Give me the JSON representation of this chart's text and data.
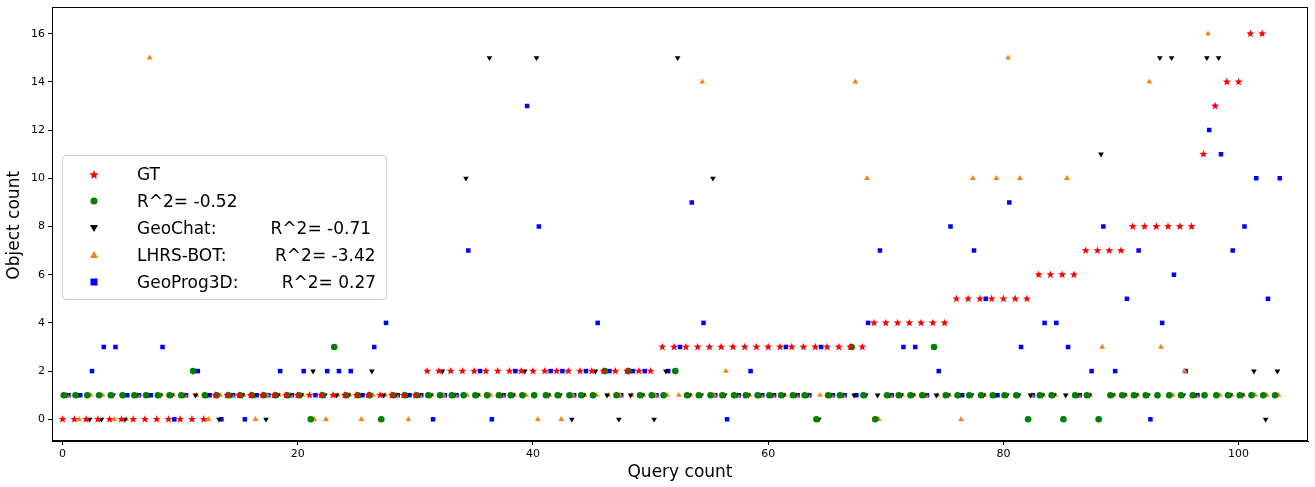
{
  "chart_data": {
    "type": "scatter",
    "xlabel": "Query count",
    "ylabel": "Object count",
    "xlim": [
      -0.9,
      105.9
    ],
    "ylim": [
      -0.9,
      17
    ],
    "xticks": [
      0,
      20,
      40,
      60,
      80,
      100
    ],
    "yticks": [
      0,
      2,
      4,
      6,
      8,
      10,
      12,
      14,
      16
    ],
    "grid": false,
    "legend": "left",
    "series": [
      {
        "name": "GT",
        "color": "#ff0000",
        "marker": "star",
        "x": [
          0,
          1,
          2,
          3,
          4,
          5,
          6,
          7,
          8,
          9,
          10,
          11,
          12,
          13,
          14,
          15,
          16,
          17,
          18,
          19,
          20,
          21,
          22,
          23,
          24,
          25,
          26,
          27,
          28,
          29,
          30,
          31,
          32,
          33,
          34,
          35,
          36,
          37,
          38,
          39,
          40,
          41,
          42,
          43,
          44,
          45,
          46,
          47,
          48,
          49,
          50,
          51,
          52,
          53,
          54,
          55,
          56,
          57,
          58,
          59,
          60,
          61,
          62,
          63,
          64,
          65,
          66,
          67,
          68,
          69,
          70,
          71,
          72,
          73,
          74,
          75,
          76,
          77,
          78,
          79,
          80,
          81,
          82,
          83,
          84,
          85,
          86,
          87,
          88,
          89,
          90,
          91,
          92,
          93,
          94,
          95,
          96,
          97,
          98,
          99,
          100,
          101,
          102
        ],
        "values": [
          0,
          0,
          0,
          0,
          0,
          0,
          0,
          0,
          0,
          0,
          0,
          0,
          0,
          1,
          1,
          1,
          1,
          1,
          1,
          1,
          1,
          1,
          1,
          1,
          1,
          1,
          1,
          1,
          1,
          1,
          1,
          2,
          2,
          2,
          2,
          2,
          2,
          2,
          2,
          2,
          2,
          2,
          2,
          2,
          2,
          2,
          2,
          2,
          2,
          2,
          2,
          3,
          3,
          3,
          3,
          3,
          3,
          3,
          3,
          3,
          3,
          3,
          3,
          3,
          3,
          3,
          3,
          3,
          3,
          4,
          4,
          4,
          4,
          4,
          4,
          4,
          5,
          5,
          5,
          5,
          5,
          5,
          5,
          6,
          6,
          6,
          6,
          7,
          7,
          7,
          7,
          8,
          8,
          8,
          8,
          8,
          8,
          11,
          13,
          14,
          14,
          16,
          16
        ]
      },
      {
        "name": "R^2= -0.52",
        "color": "#008000",
        "marker": "circle",
        "x": [
          0.1,
          1.1,
          2.1,
          3.1,
          4.1,
          5.1,
          6.1,
          7.1,
          8.1,
          9.1,
          10.1,
          11.1,
          12.1,
          13.1,
          14.1,
          15.1,
          16.1,
          17.1,
          18.1,
          19.1,
          20.1,
          21.1,
          22.1,
          23.1,
          24.1,
          25.1,
          26.1,
          27.1,
          28.1,
          29.1,
          30.1,
          31.1,
          32.1,
          33.1,
          34.1,
          35.1,
          36.1,
          37.1,
          38.1,
          39.1,
          40.1,
          41.1,
          42.1,
          43.1,
          44.1,
          45.1,
          46.1,
          47.1,
          48.1,
          49.1,
          50.1,
          51.1,
          52.1,
          53.1,
          54.1,
          55.1,
          56.1,
          57.1,
          58.1,
          59.1,
          60.1,
          61.1,
          62.1,
          63.1,
          64.1,
          65.1,
          66.1,
          67.1,
          68.1,
          69.1,
          70.1,
          71.1,
          72.1,
          73.1,
          74.1,
          75.1,
          76.1,
          77.1,
          78.1,
          79.1,
          80.1,
          81.1,
          82.1,
          83.1,
          84.1,
          85.1,
          86.1,
          87.1,
          88.1,
          89.1,
          90.1,
          91.1,
          92.1,
          93.1,
          94.1,
          95.1,
          96.1,
          97.1,
          98.1,
          99.1,
          100.1,
          101.1,
          102.1,
          103.1
        ],
        "values": [
          1,
          1,
          1,
          1,
          1,
          1,
          1,
          1,
          1,
          1,
          1,
          2,
          1,
          1,
          1,
          1,
          1,
          1,
          1,
          1,
          1,
          0,
          1,
          3,
          1,
          1,
          1,
          0,
          1,
          1,
          1,
          1,
          1,
          1,
          1,
          1,
          1,
          1,
          1,
          1,
          1,
          1,
          1,
          1,
          1,
          1,
          2,
          1,
          2,
          1,
          1,
          1,
          2,
          1,
          1,
          1,
          1,
          1,
          1,
          1,
          1,
          1,
          1,
          1,
          0,
          1,
          1,
          3,
          1,
          0,
          1,
          1,
          1,
          1,
          3,
          1,
          1,
          1,
          1,
          1,
          1,
          1,
          0,
          1,
          1,
          0,
          1,
          1,
          0,
          1,
          1,
          1,
          1,
          1,
          1,
          1,
          1,
          1,
          1,
          1,
          1,
          1,
          1,
          1
        ]
      },
      {
        "name": "GeoChat:          R^2= -0.71",
        "color": "#000000",
        "marker": "triangle_down",
        "x": [
          0.3,
          1.3,
          2.3,
          3.3,
          4.3,
          5.3,
          6.3,
          7.3,
          8.3,
          9.3,
          10.3,
          11.3,
          12.3,
          13.3,
          14.3,
          15.3,
          16.3,
          17.3,
          18.3,
          19.3,
          20.3,
          21.3,
          22.3,
          23.3,
          24.3,
          25.3,
          26.3,
          27.3,
          28.3,
          29.3,
          30.3,
          31.3,
          32.3,
          33.3,
          34.3,
          35.3,
          36.3,
          37.3,
          38.3,
          39.3,
          40.3,
          41.3,
          42.3,
          43.3,
          44.3,
          45.3,
          46.3,
          47.3,
          48.3,
          49.3,
          50.3,
          51.3,
          52.3,
          53.3,
          54.3,
          55.3,
          56.3,
          57.3,
          58.3,
          59.3,
          60.3,
          61.3,
          62.3,
          63.3,
          64.3,
          65.3,
          66.3,
          67.3,
          68.3,
          69.3,
          70.3,
          71.3,
          72.3,
          73.3,
          74.3,
          75.3,
          76.3,
          77.3,
          78.3,
          79.3,
          80.3,
          81.3,
          82.3,
          83.3,
          84.3,
          85.3,
          86.3,
          87.3,
          88.3,
          89.3,
          90.3,
          91.3,
          92.3,
          93.3,
          94.3,
          95.3,
          96.3,
          97.3,
          98.3,
          99.3,
          100.3,
          101.3,
          102.3,
          103.3
        ],
        "values": [
          1,
          1,
          0,
          0,
          1,
          0,
          1,
          1,
          1,
          1,
          1,
          1,
          1,
          0,
          1,
          1,
          1,
          0,
          1,
          1,
          1,
          2,
          1,
          1,
          1,
          1,
          2,
          1,
          1,
          1,
          1,
          1,
          2,
          1,
          10,
          1,
          15,
          1,
          1,
          2,
          15,
          1,
          1,
          0,
          1,
          2,
          1,
          0,
          1,
          1,
          0,
          2,
          15,
          1,
          1,
          10,
          1,
          1,
          1,
          1,
          1,
          1,
          1,
          1,
          0,
          1,
          1,
          1,
          1,
          1,
          1,
          1,
          1,
          1,
          1,
          1,
          1,
          1,
          1,
          1,
          1,
          1,
          1,
          1,
          1,
          1,
          1,
          1,
          11,
          1,
          1,
          1,
          1,
          15,
          15,
          1,
          1,
          15,
          15,
          1,
          1,
          2,
          0,
          2
        ]
      },
      {
        "name": "LHRS-BOT:         R^2= -3.42",
        "color": "#ff7f0e",
        "marker": "triangle",
        "x": [
          0.4,
          1.4,
          2.4,
          3.4,
          4.4,
          5.4,
          6.4,
          7.4,
          8.4,
          9.4,
          10.4,
          11.4,
          12.4,
          13.4,
          14.4,
          15.4,
          16.4,
          17.4,
          18.4,
          19.4,
          20.4,
          21.4,
          22.4,
          23.4,
          24.4,
          25.4,
          26.4,
          27.4,
          28.4,
          29.4,
          30.4,
          31.4,
          32.4,
          33.4,
          34.4,
          35.4,
          36.4,
          37.4,
          38.4,
          39.4,
          40.4,
          41.4,
          42.4,
          43.4,
          44.4,
          45.4,
          46.4,
          47.4,
          48.4,
          49.4,
          50.4,
          51.4,
          52.4,
          53.4,
          54.4,
          55.4,
          56.4,
          57.4,
          58.4,
          59.4,
          60.4,
          61.4,
          62.4,
          63.4,
          64.4,
          65.4,
          66.4,
          67.4,
          68.4,
          69.4,
          70.4,
          71.4,
          72.4,
          73.4,
          74.4,
          75.4,
          76.4,
          77.4,
          78.4,
          79.4,
          80.4,
          81.4,
          82.4,
          83.4,
          84.4,
          85.4,
          86.4,
          87.4,
          88.4,
          89.4,
          90.4,
          91.4,
          92.4,
          93.4,
          94.4,
          95.4,
          96.4,
          97.4,
          98.4,
          99.4,
          100.4,
          101.4,
          102.4,
          103.4
        ],
        "values": [
          1,
          0,
          1,
          1,
          0,
          0,
          1,
          15,
          1,
          1,
          1,
          1,
          0,
          1,
          1,
          1,
          0,
          1,
          1,
          1,
          1,
          0,
          0,
          1,
          1,
          0,
          1,
          1,
          1,
          0,
          1,
          1,
          1,
          1,
          1,
          1,
          1,
          1,
          1,
          1,
          0,
          1,
          0,
          1,
          1,
          1,
          1,
          1,
          1,
          1,
          1,
          1,
          1,
          1,
          14,
          1,
          2,
          1,
          1,
          1,
          1,
          1,
          1,
          1,
          1,
          1,
          1,
          14,
          10,
          0,
          1,
          1,
          1,
          1,
          1,
          1,
          0,
          10,
          1,
          10,
          15,
          10,
          1,
          1,
          1,
          10,
          1,
          1,
          3,
          1,
          1,
          1,
          14,
          3,
          1,
          2,
          1,
          16,
          1,
          1,
          1,
          1,
          1,
          1
        ]
      },
      {
        "name": "GeoProg3D:        R^2= 0.27",
        "color": "#0000ff",
        "marker": "square",
        "x": [
          0.5,
          1.5,
          2.5,
          3.5,
          4.5,
          5.5,
          6.5,
          7.5,
          8.5,
          9.5,
          10.5,
          11.5,
          12.5,
          13.5,
          14.5,
          15.5,
          16.5,
          17.5,
          18.5,
          19.5,
          20.5,
          21.5,
          22.5,
          23.5,
          24.5,
          25.5,
          26.5,
          27.5,
          28.5,
          29.5,
          30.5,
          31.5,
          32.5,
          33.5,
          34.5,
          35.5,
          36.5,
          37.5,
          38.5,
          39.5,
          40.5,
          41.5,
          42.5,
          43.5,
          44.5,
          45.5,
          46.5,
          47.5,
          48.5,
          49.5,
          50.5,
          51.5,
          52.5,
          53.5,
          54.5,
          55.5,
          56.5,
          57.5,
          58.5,
          59.5,
          60.5,
          61.5,
          62.5,
          63.5,
          64.5,
          65.5,
          66.5,
          67.5,
          68.5,
          69.5,
          70.5,
          71.5,
          72.5,
          73.5,
          74.5,
          75.5,
          76.5,
          77.5,
          78.5,
          79.5,
          80.5,
          81.5,
          82.5,
          83.5,
          84.5,
          85.5,
          86.5,
          87.5,
          88.5,
          89.5,
          90.5,
          91.5,
          92.5,
          93.5,
          94.5,
          95.5,
          96.5,
          97.5,
          98.5,
          99.5,
          100.5,
          101.5,
          102.5,
          103.5
        ],
        "values": [
          1,
          1,
          2,
          3,
          3,
          1,
          1,
          1,
          3,
          0,
          1,
          2,
          1,
          0,
          1,
          0,
          1,
          1,
          2,
          1,
          2,
          1,
          2,
          2,
          2,
          1,
          3,
          4,
          1,
          1,
          1,
          0,
          1,
          1,
          7,
          2,
          0,
          1,
          2,
          13,
          8,
          2,
          2,
          1,
          2,
          4,
          2,
          1,
          2,
          2,
          1,
          2,
          3,
          9,
          4,
          1,
          0,
          1,
          2,
          1,
          1,
          3,
          1,
          1,
          3,
          1,
          1,
          1,
          4,
          7,
          1,
          3,
          3,
          1,
          2,
          8,
          1,
          7,
          5,
          1,
          9,
          3,
          1,
          4,
          4,
          3,
          1,
          2,
          8,
          2,
          5,
          7,
          0,
          4,
          6,
          2,
          1,
          12,
          11,
          7,
          8,
          10,
          5,
          10
        ]
      }
    ]
  }
}
